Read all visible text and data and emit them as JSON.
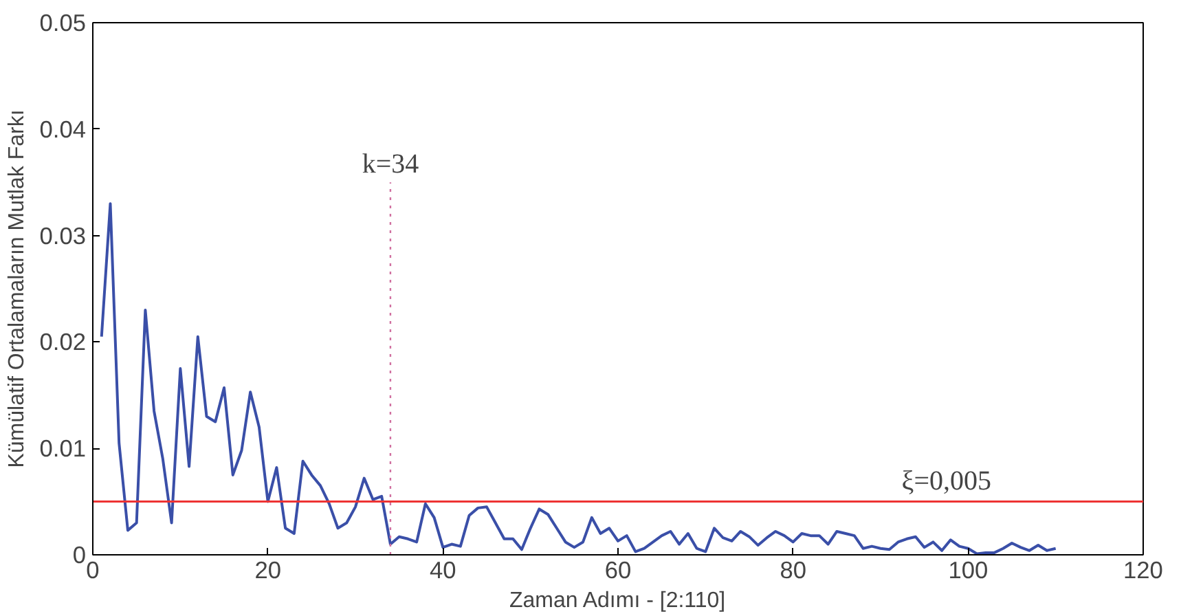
{
  "chart_data": {
    "type": "line",
    "xlabel": "Zaman Adımı - [2:110]",
    "ylabel": "Kümülatif Ortalamaların Mutlak Farkı",
    "x": [
      1,
      2,
      3,
      4,
      5,
      6,
      7,
      8,
      9,
      10,
      11,
      12,
      13,
      14,
      15,
      16,
      17,
      18,
      19,
      20,
      21,
      22,
      23,
      24,
      25,
      26,
      27,
      28,
      29,
      30,
      31,
      32,
      33,
      34,
      35,
      36,
      37,
      38,
      39,
      40,
      41,
      42,
      43,
      44,
      45,
      46,
      47,
      48,
      49,
      50,
      51,
      52,
      53,
      54,
      55,
      56,
      57,
      58,
      59,
      60,
      61,
      62,
      63,
      64,
      65,
      66,
      67,
      68,
      69,
      70,
      71,
      72,
      73,
      74,
      75,
      76,
      77,
      78,
      79,
      80,
      81,
      82,
      83,
      84,
      85,
      86,
      87,
      88,
      89,
      90,
      91,
      92,
      93,
      94,
      95,
      96,
      97,
      98,
      99,
      100,
      101,
      102,
      103,
      104,
      105,
      106,
      107,
      108,
      109,
      110
    ],
    "series": [
      {
        "color": "#3a4fa8",
        "values": [
          0.0205,
          0.033,
          0.0105,
          0.0023,
          0.003,
          0.023,
          0.0135,
          0.009,
          0.003,
          0.0175,
          0.0083,
          0.0205,
          0.013,
          0.0125,
          0.0157,
          0.0075,
          0.0098,
          0.0153,
          0.012,
          0.005,
          0.0082,
          0.0025,
          0.002,
          0.0088,
          0.0075,
          0.0065,
          0.0048,
          0.0025,
          0.003,
          0.0045,
          0.0072,
          0.0052,
          0.0055,
          0.001,
          0.0017,
          0.0015,
          0.0012,
          0.0048,
          0.0035,
          0.0007,
          0.001,
          0.0008,
          0.0037,
          0.0044,
          0.0045,
          0.003,
          0.0015,
          0.0015,
          0.0005,
          0.0025,
          0.0043,
          0.0038,
          0.0025,
          0.0012,
          0.0007,
          0.0012,
          0.0035,
          0.002,
          0.0025,
          0.0013,
          0.0018,
          0.0003,
          0.0006,
          0.0012,
          0.0018,
          0.0022,
          0.001,
          0.002,
          0.0006,
          0.0003,
          0.0025,
          0.0016,
          0.0013,
          0.0022,
          0.0017,
          0.0009,
          0.0016,
          0.0022,
          0.0018,
          0.0012,
          0.002,
          0.0018,
          0.0018,
          0.001,
          0.0022,
          0.002,
          0.0018,
          0.0006,
          0.0008,
          0.0006,
          0.0005,
          0.0012,
          0.0015,
          0.0017,
          0.0007,
          0.0012,
          0.0004,
          0.0014,
          0.0008,
          0.0006,
          0.0001,
          0.0002,
          0.0002,
          0.0006,
          0.0011,
          0.0007,
          0.0004,
          0.0009,
          0.0004,
          0.0006
        ]
      }
    ],
    "xlim": [
      0,
      120
    ],
    "xticks": [
      0,
      20,
      40,
      60,
      80,
      100,
      120
    ],
    "ylim": [
      0,
      0.05
    ],
    "yticks": [
      0,
      0.01,
      0.02,
      0.03,
      0.04,
      0.05
    ],
    "ref_lines": [
      {
        "axis": "y",
        "value": 0.005,
        "label": "ξ=0,005",
        "color": "#ee3333",
        "line_style": "solid"
      },
      {
        "axis": "x",
        "value": 34,
        "label": "k=34",
        "color": "#d070a0",
        "line_style": "dotted"
      }
    ],
    "grid": false,
    "marker": "none",
    "line_style": "solid"
  }
}
